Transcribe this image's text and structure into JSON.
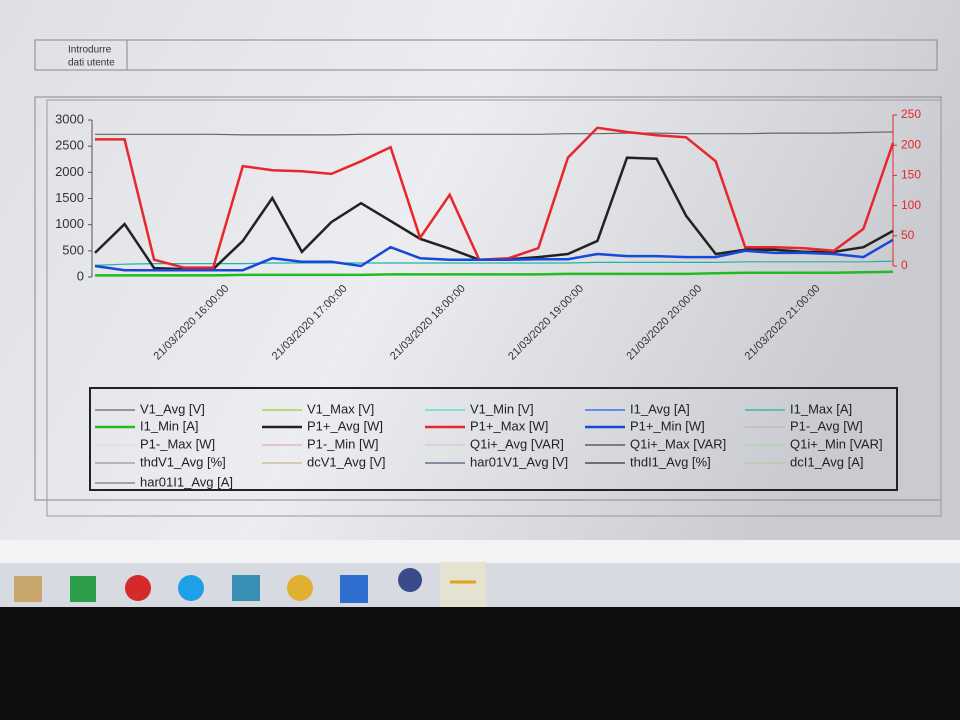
{
  "header": {
    "button": [
      "Introdurre",
      "dati utente"
    ]
  },
  "chart_data": {
    "type": "line",
    "categories": [
      null,
      null,
      null,
      null,
      "21/03/2020 16:00:00",
      null,
      null,
      null,
      "21/03/2020 17:00:00",
      null,
      null,
      null,
      "21/03/2020 18:00:00",
      null,
      null,
      null,
      "21/03/2020 19:00:00",
      null,
      null,
      null,
      "21/03/2020 20:00:00",
      null,
      null,
      null,
      "21/03/2020 21:00:00",
      null,
      null,
      null
    ],
    "ylim": [
      0,
      3000
    ],
    "yticks": [
      0,
      500,
      1000,
      1500,
      2000,
      2500,
      3000
    ],
    "y2lim": [
      0,
      250
    ],
    "y2ticks": [
      0,
      50,
      100,
      150,
      200,
      250
    ],
    "series": [
      {
        "name": "V1_Avg [V]",
        "color": "#666666",
        "axis": "y2",
        "values": [
          218,
          218,
          218,
          218,
          218,
          217,
          217,
          217,
          217,
          218,
          218,
          218,
          218,
          218,
          218,
          218,
          219,
          219,
          220,
          220,
          219,
          219,
          219,
          220,
          220,
          220,
          221,
          222
        ]
      },
      {
        "name": "V1_Max [V]",
        "color": "#9acd32",
        "values": [
          null,
          null,
          null,
          null,
          null,
          null,
          null,
          null,
          null,
          null,
          null,
          null,
          null,
          null,
          null,
          null,
          null,
          null,
          null,
          null,
          null,
          null,
          null,
          null,
          null,
          null,
          null,
          null
        ]
      },
      {
        "name": "V1_Min [V]",
        "color": "#40e0d0",
        "values": [
          null,
          null,
          null,
          null,
          null,
          null,
          null,
          null,
          null,
          null,
          null,
          null,
          null,
          null,
          null,
          null,
          null,
          null,
          null,
          null,
          null,
          null,
          null,
          null,
          null,
          null,
          null,
          null
        ]
      },
      {
        "name": "I1_Avg [A]",
        "color": "#1e5bff",
        "values": [
          null,
          null,
          null,
          null,
          null,
          null,
          null,
          null,
          null,
          null,
          null,
          null,
          null,
          null,
          null,
          null,
          null,
          null,
          null,
          null,
          null,
          null,
          null,
          null,
          null,
          null,
          null,
          null
        ]
      },
      {
        "name": "I1_Max [A]",
        "color": "#20b2aa",
        "axis": "y2",
        "values": [
          1,
          3,
          4,
          4,
          4,
          4,
          5,
          5,
          5,
          5,
          5,
          5,
          5,
          5,
          5,
          5,
          5,
          6,
          6,
          6,
          6,
          6,
          7,
          7,
          7,
          7,
          7,
          8
        ]
      },
      {
        "name": "I1_Min [A]",
        "color": "#22bb22",
        "values": [
          30,
          30,
          30,
          30,
          30,
          40,
          40,
          40,
          40,
          40,
          50,
          50,
          50,
          50,
          50,
          50,
          60,
          60,
          60,
          60,
          60,
          70,
          80,
          80,
          80,
          80,
          90,
          100
        ]
      },
      {
        "name": "P1+_Avg [W]",
        "color": "#222222",
        "values": [
          460,
          1010,
          170,
          150,
          150,
          690,
          1510,
          480,
          1050,
          1410,
          1070,
          730,
          540,
          330,
          340,
          380,
          440,
          690,
          2280,
          2260,
          1170,
          440,
          520,
          520,
          480,
          480,
          570,
          880
        ]
      },
      {
        "name": "P1+_Max [W]",
        "color": "#e8262b",
        "values": [
          2630,
          2630,
          330,
          180,
          180,
          2120,
          2040,
          2020,
          1970,
          2210,
          2480,
          750,
          1570,
          330,
          360,
          550,
          2280,
          2850,
          2770,
          2710,
          2670,
          2210,
          570,
          570,
          550,
          500,
          920,
          2560
        ]
      },
      {
        "name": "P1+_Min [W]",
        "color": "#1848d8",
        "values": [
          210,
          130,
          130,
          130,
          130,
          130,
          360,
          290,
          290,
          210,
          570,
          360,
          330,
          330,
          330,
          340,
          340,
          440,
          400,
          400,
          380,
          380,
          500,
          460,
          460,
          440,
          380,
          710
        ]
      },
      {
        "name": "P1-_Avg [W]",
        "color": "#bbbbbb",
        "values": [
          null,
          null,
          null,
          null,
          null,
          null,
          null,
          null,
          null,
          null,
          null,
          null,
          null,
          null,
          null,
          null,
          null,
          null,
          null,
          null,
          null,
          null,
          null,
          null,
          null,
          null,
          null,
          null
        ]
      },
      {
        "name": "P1-_Max [W]",
        "color": "#dddddd",
        "values": [
          null,
          null,
          null,
          null,
          null,
          null,
          null,
          null,
          null,
          null,
          null,
          null,
          null,
          null,
          null,
          null,
          null,
          null,
          null,
          null,
          null,
          null,
          null,
          null,
          null,
          null,
          null,
          null
        ]
      },
      {
        "name": "P1-_Min [W]",
        "color": "#e0b0b0",
        "values": [
          null,
          null,
          null,
          null,
          null,
          null,
          null,
          null,
          null,
          null,
          null,
          null,
          null,
          null,
          null,
          null,
          null,
          null,
          null,
          null,
          null,
          null,
          null,
          null,
          null,
          null,
          null,
          null
        ]
      },
      {
        "name": "Q1i+_Avg [VAR]",
        "color": "#cccccc",
        "values": [
          null,
          null,
          null,
          null,
          null,
          null,
          null,
          null,
          null,
          null,
          null,
          null,
          null,
          null,
          null,
          null,
          null,
          null,
          null,
          null,
          null,
          null,
          null,
          null,
          null,
          null,
          null,
          null
        ]
      },
      {
        "name": "Q1i+_Max [VAR]",
        "color": "#444444",
        "values": [
          null,
          null,
          null,
          null,
          null,
          null,
          null,
          null,
          null,
          null,
          null,
          null,
          null,
          null,
          null,
          null,
          null,
          null,
          null,
          null,
          null,
          null,
          null,
          null,
          null,
          null,
          null,
          null
        ]
      },
      {
        "name": "Q1i+_Min [VAR]",
        "color": "#a8d8a8",
        "values": [
          null,
          null,
          null,
          null,
          null,
          null,
          null,
          null,
          null,
          null,
          null,
          null,
          null,
          null,
          null,
          null,
          null,
          null,
          null,
          null,
          null,
          null,
          null,
          null,
          null,
          null,
          null,
          null
        ]
      },
      {
        "name": "thdV1_Avg [%]",
        "color": "#999999",
        "values": [
          null,
          null,
          null,
          null,
          null,
          null,
          null,
          null,
          null,
          null,
          null,
          null,
          null,
          null,
          null,
          null,
          null,
          null,
          null,
          null,
          null,
          null,
          null,
          null,
          null,
          null,
          null,
          null
        ]
      },
      {
        "name": "dcV1_Avg [V]",
        "color": "#c8b48c",
        "values": [
          null,
          null,
          null,
          null,
          null,
          null,
          null,
          null,
          null,
          null,
          null,
          null,
          null,
          null,
          null,
          null,
          null,
          null,
          null,
          null,
          null,
          null,
          null,
          null,
          null,
          null,
          null,
          null
        ]
      },
      {
        "name": "har01V1_Avg [V]",
        "color": "#555577",
        "values": [
          null,
          null,
          null,
          null,
          null,
          null,
          null,
          null,
          null,
          null,
          null,
          null,
          null,
          null,
          null,
          null,
          null,
          null,
          null,
          null,
          null,
          null,
          null,
          null,
          null,
          null,
          null,
          null
        ]
      },
      {
        "name": "thdI1_Avg [%]",
        "color": "#333333",
        "values": [
          null,
          null,
          null,
          null,
          null,
          null,
          null,
          null,
          null,
          null,
          null,
          null,
          null,
          null,
          null,
          null,
          null,
          null,
          null,
          null,
          null,
          null,
          null,
          null,
          null,
          null,
          null,
          null
        ]
      },
      {
        "name": "dcI1_Avg [A]",
        "color": "#b0c8a0",
        "values": [
          null,
          null,
          null,
          null,
          null,
          null,
          null,
          null,
          null,
          null,
          null,
          null,
          null,
          null,
          null,
          null,
          null,
          null,
          null,
          null,
          null,
          null,
          null,
          null,
          null,
          null,
          null,
          null
        ]
      },
      {
        "name": "har01I1_Avg [A]",
        "color": "#777777",
        "values": [
          null,
          null,
          null,
          null,
          null,
          null,
          null,
          null,
          null,
          null,
          null,
          null,
          null,
          null,
          null,
          null,
          null,
          null,
          null,
          null,
          null,
          null,
          null,
          null,
          null,
          null,
          null,
          null
        ]
      }
    ],
    "y2color": "#e8262b"
  }
}
